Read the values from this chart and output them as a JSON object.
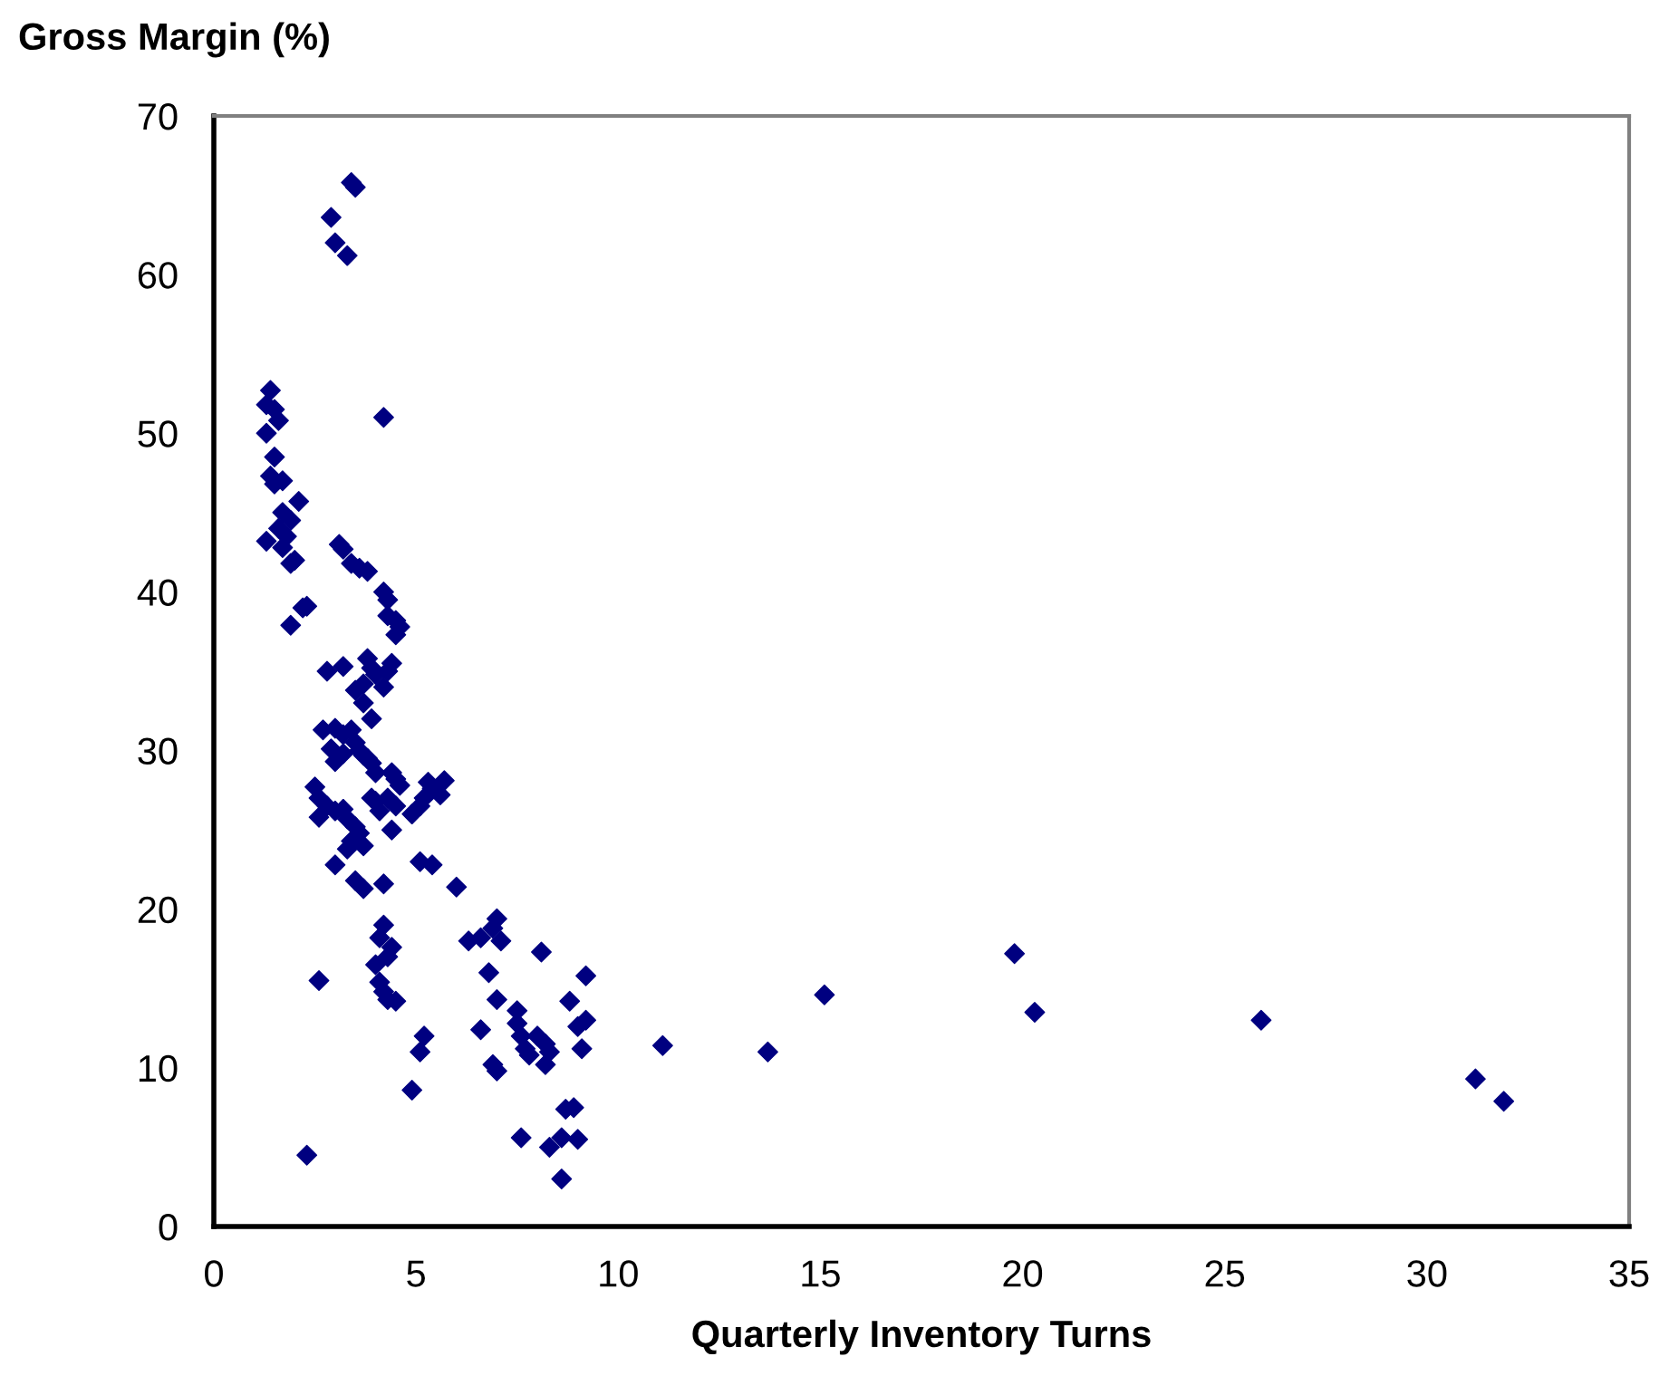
{
  "chart_data": {
    "type": "scatter",
    "ylabel": "Gross Margin (%)",
    "xlabel": "Quarterly Inventory Turns",
    "xlim": [
      0,
      35
    ],
    "xticks": [
      0,
      5,
      10,
      15,
      20,
      25,
      30,
      35
    ],
    "ylim": [
      0,
      70
    ],
    "yticks": [
      0,
      10,
      20,
      30,
      40,
      50,
      60,
      70
    ],
    "marker": "diamond",
    "grid": false,
    "series": [
      {
        "color": "#000080",
        "x": [
          3.4,
          3.5,
          2.9,
          3.0,
          3.3,
          4.2,
          1.4,
          1.3,
          1.5,
          1.3,
          1.6,
          1.5,
          1.4,
          1.7,
          1.5,
          2.1,
          1.7,
          1.9,
          1.6,
          1.8,
          1.3,
          1.7,
          2.0,
          1.9,
          1.9,
          2.2,
          2.3,
          3.1,
          3.2,
          3.4,
          3.6,
          3.8,
          4.2,
          4.3,
          4.3,
          4.5,
          4.6,
          4.5,
          2.8,
          3.2,
          3.8,
          3.9,
          4.0,
          3.7,
          4.2,
          4.3,
          4.4,
          3.5,
          3.7,
          3.9,
          2.7,
          3.0,
          3.2,
          3.4,
          3.5,
          3.6,
          3.7,
          3.8,
          3.9,
          4.0,
          3.2,
          2.9,
          3.0,
          4.4,
          4.5,
          4.6,
          5.3,
          5.4,
          5.7,
          5.6,
          5.2,
          2.5,
          2.6,
          2.8,
          3.0,
          3.2,
          3.3,
          2.6,
          3.5,
          3.6,
          3.4,
          3.7,
          3.3,
          3.9,
          4.0,
          4.1,
          4.3,
          4.5,
          4.4,
          4.9,
          5.1,
          3.0,
          3.5,
          3.7,
          4.2,
          5.1,
          5.4,
          6.0,
          4.2,
          4.1,
          4.4,
          4.3,
          4.0,
          4.1,
          4.2,
          4.3,
          4.5,
          2.6,
          5.2,
          5.1,
          4.9,
          2.3,
          6.3,
          6.6,
          6.9,
          7.0,
          7.1,
          6.8,
          7.0,
          6.6,
          6.9,
          7.0,
          7.5,
          7.5,
          7.6,
          7.7,
          7.8,
          8.0,
          8.2,
          8.3,
          8.2,
          8.1,
          8.8,
          9.2,
          9.0,
          9.2,
          9.1,
          7.6,
          8.3,
          8.6,
          8.7,
          8.9,
          8.6,
          9.0,
          11.1,
          13.7,
          15.1,
          19.8,
          20.3,
          25.9,
          31.2,
          31.9
        ],
        "values": [
          65.8,
          65.5,
          63.6,
          62.0,
          61.2,
          51.0,
          52.7,
          51.8,
          51.5,
          50.0,
          50.8,
          48.5,
          47.3,
          47.0,
          46.8,
          45.7,
          45.0,
          44.5,
          44.0,
          43.5,
          43.2,
          42.8,
          42.0,
          41.8,
          37.9,
          39.0,
          39.1,
          43.0,
          42.7,
          41.8,
          41.5,
          41.3,
          40.0,
          39.5,
          38.5,
          38.2,
          37.8,
          37.3,
          35.0,
          35.3,
          35.8,
          35.2,
          34.8,
          34.2,
          34.0,
          35.0,
          35.5,
          33.8,
          33.0,
          32.0,
          31.3,
          31.4,
          31.0,
          31.3,
          30.5,
          30.0,
          29.7,
          29.5,
          29.2,
          28.6,
          29.8,
          30.1,
          29.3,
          28.6,
          28.2,
          27.8,
          28.0,
          27.6,
          28.1,
          27.2,
          27.0,
          27.7,
          27.0,
          26.5,
          26.2,
          26.3,
          25.7,
          25.8,
          25.2,
          24.8,
          24.3,
          24.0,
          23.8,
          27.0,
          26.8,
          26.2,
          27.0,
          26.5,
          25.0,
          26.0,
          26.5,
          22.8,
          21.8,
          21.3,
          21.6,
          23.0,
          22.8,
          21.4,
          19.0,
          18.2,
          17.6,
          17.0,
          16.5,
          15.4,
          14.8,
          14.3,
          14.2,
          15.5,
          12.0,
          11.0,
          8.6,
          4.5,
          18.0,
          18.2,
          18.8,
          19.4,
          18.0,
          16.0,
          14.3,
          12.4,
          10.2,
          9.8,
          13.6,
          12.8,
          12.0,
          11.2,
          10.8,
          12.0,
          11.5,
          11.0,
          10.2,
          17.3,
          14.2,
          15.8,
          12.6,
          13.0,
          11.2,
          5.6,
          5.0,
          5.6,
          7.4,
          7.5,
          3.0,
          5.5,
          11.4,
          11.0,
          14.6,
          17.2,
          13.5,
          13.0,
          9.3,
          7.9
        ]
      }
    ]
  }
}
